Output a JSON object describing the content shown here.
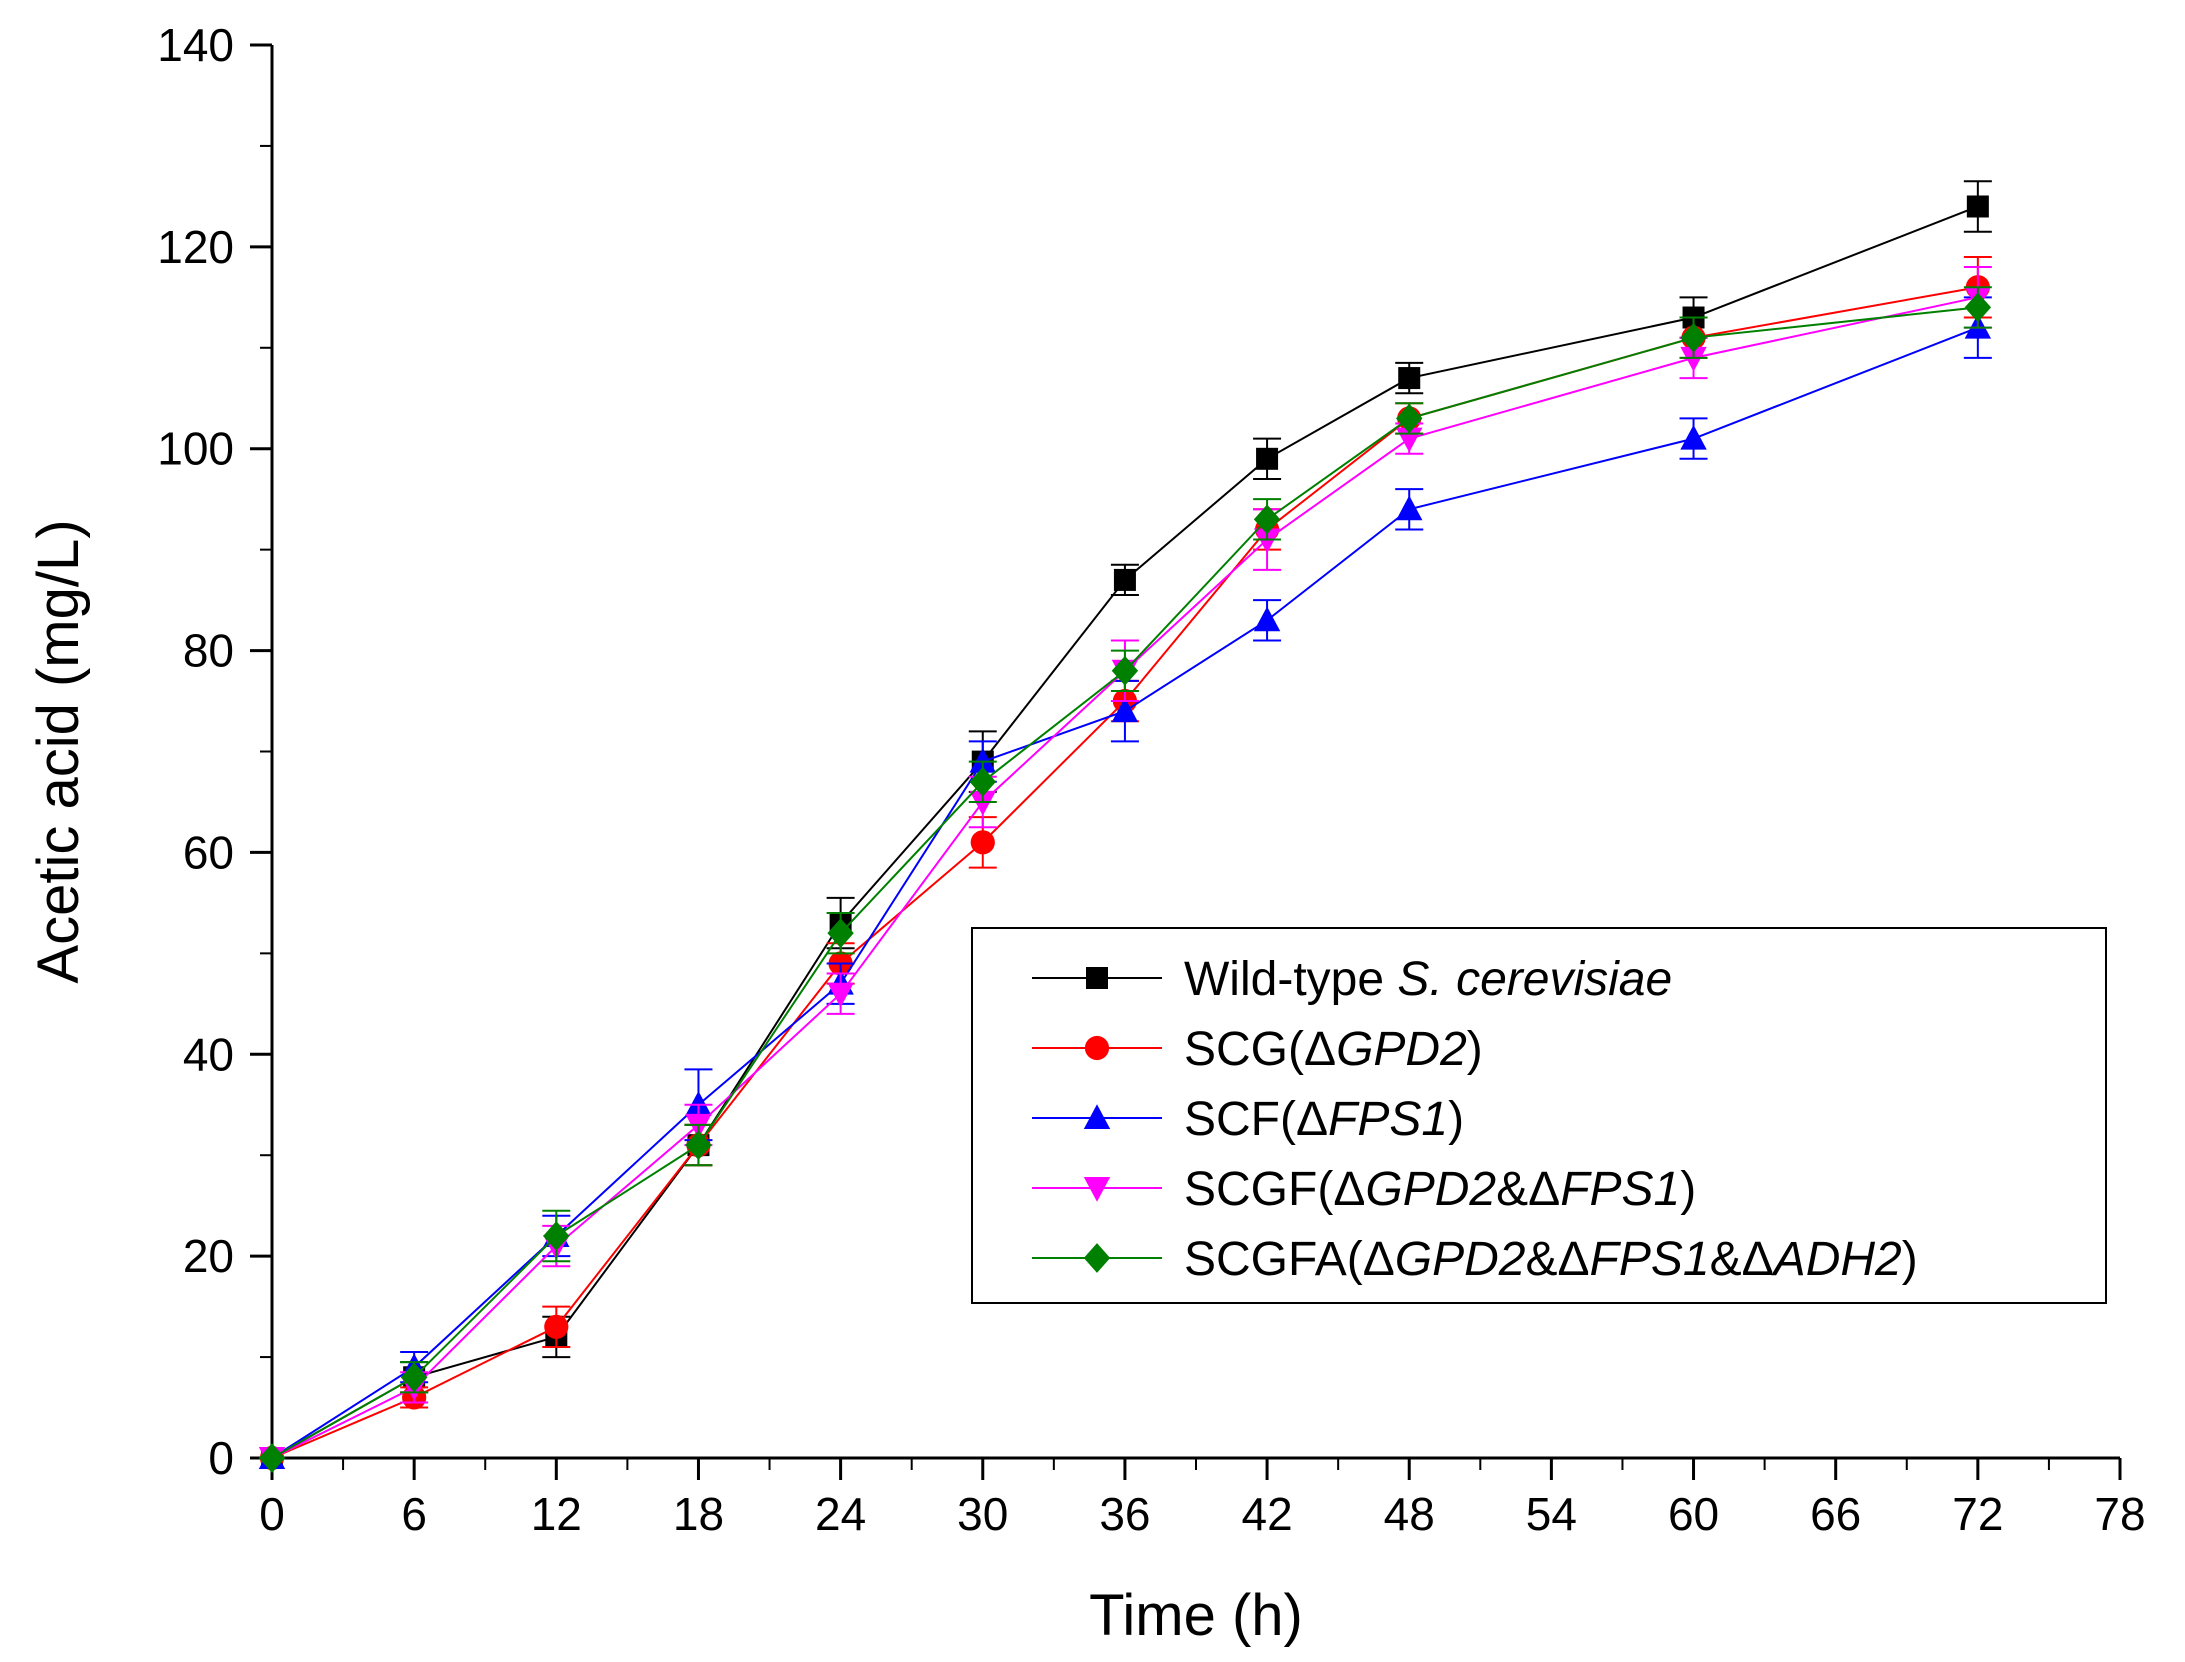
{
  "chart_data": {
    "type": "line",
    "xlabel": "Time (h)",
    "ylabel": "Acetic acid (mg/L)",
    "xlim": [
      0,
      78
    ],
    "ylim": [
      0,
      140
    ],
    "xticks": [
      0,
      6,
      12,
      18,
      24,
      30,
      36,
      42,
      48,
      54,
      60,
      66,
      72,
      78
    ],
    "yticks": [
      0,
      20,
      40,
      60,
      80,
      100,
      120,
      140
    ],
    "grid": false,
    "legend_position": "center-right",
    "series": [
      {
        "name": "Wild-type S. cerevisiae",
        "legend_parts": [
          {
            "text": "Wild-type ",
            "italic": false
          },
          {
            "text": "S. cerevisiae",
            "italic": true
          }
        ],
        "color": "#000000",
        "marker": "square",
        "x": [
          0,
          6,
          12,
          18,
          24,
          30,
          36,
          42,
          48,
          60,
          72
        ],
        "y": [
          0,
          8,
          12,
          31,
          53,
          69,
          87,
          99,
          107,
          113,
          124
        ],
        "err": [
          0,
          1.5,
          2,
          2,
          2.5,
          3,
          1.5,
          2,
          1.5,
          2,
          2.5
        ]
      },
      {
        "name": "SCG(ΔGPD2)",
        "legend_parts": [
          {
            "text": "SCG(Δ",
            "italic": false
          },
          {
            "text": "GPD2",
            "italic": true
          },
          {
            "text": ")",
            "italic": false
          }
        ],
        "color": "#ff0000",
        "marker": "circle",
        "x": [
          0,
          6,
          12,
          18,
          24,
          30,
          36,
          42,
          48,
          60,
          72
        ],
        "y": [
          0,
          6,
          13,
          31,
          49,
          61,
          75,
          92,
          103,
          111,
          116
        ],
        "err": [
          0,
          1,
          2,
          2,
          2,
          2.5,
          2,
          2,
          1.5,
          2,
          3
        ]
      },
      {
        "name": "SCF(ΔFPS1)",
        "legend_parts": [
          {
            "text": "SCF(Δ",
            "italic": false
          },
          {
            "text": "FPS1",
            "italic": true
          },
          {
            "text": ")",
            "italic": false
          }
        ],
        "color": "#0000ff",
        "marker": "triangle-up",
        "x": [
          0,
          6,
          12,
          18,
          24,
          30,
          36,
          42,
          48,
          60,
          72
        ],
        "y": [
          0,
          9,
          22,
          35,
          47,
          69,
          74,
          83,
          94,
          101,
          112
        ],
        "err": [
          0,
          1.5,
          2,
          3.5,
          2,
          2,
          3,
          2,
          2,
          2,
          3
        ]
      },
      {
        "name": "SCGF(ΔGPD2&ΔFPS1)",
        "legend_parts": [
          {
            "text": "SCGF(Δ",
            "italic": false
          },
          {
            "text": "GPD2",
            "italic": true
          },
          {
            "text": "&Δ",
            "italic": false
          },
          {
            "text": "FPS1",
            "italic": true
          },
          {
            "text": ")",
            "italic": false
          }
        ],
        "color": "#ff00ff",
        "marker": "triangle-down",
        "x": [
          0,
          6,
          12,
          18,
          24,
          30,
          36,
          42,
          48,
          60,
          72
        ],
        "y": [
          0,
          7,
          21,
          33,
          46,
          65,
          78,
          91,
          101,
          109,
          115
        ],
        "err": [
          0,
          1.5,
          2,
          2,
          2,
          2.5,
          3,
          3,
          1.5,
          2,
          3
        ]
      },
      {
        "name": "SCGFA(ΔGPD2&ΔFPS1&ΔADH2)",
        "legend_parts": [
          {
            "text": "SCGFA(Δ",
            "italic": false
          },
          {
            "text": "GPD2",
            "italic": true
          },
          {
            "text": "&Δ",
            "italic": false
          },
          {
            "text": "FPS1",
            "italic": true
          },
          {
            "text": "&Δ",
            "italic": false
          },
          {
            "text": "ADH2",
            "italic": true
          },
          {
            "text": ")",
            "italic": false
          }
        ],
        "color": "#008000",
        "marker": "diamond",
        "x": [
          0,
          6,
          12,
          18,
          24,
          30,
          36,
          42,
          48,
          60,
          72
        ],
        "y": [
          0,
          8,
          22,
          31,
          52,
          67,
          78,
          93,
          103,
          111,
          114
        ],
        "err": [
          0,
          1.5,
          2.5,
          2,
          2,
          2,
          2,
          2,
          1.5,
          2,
          2
        ]
      }
    ]
  }
}
